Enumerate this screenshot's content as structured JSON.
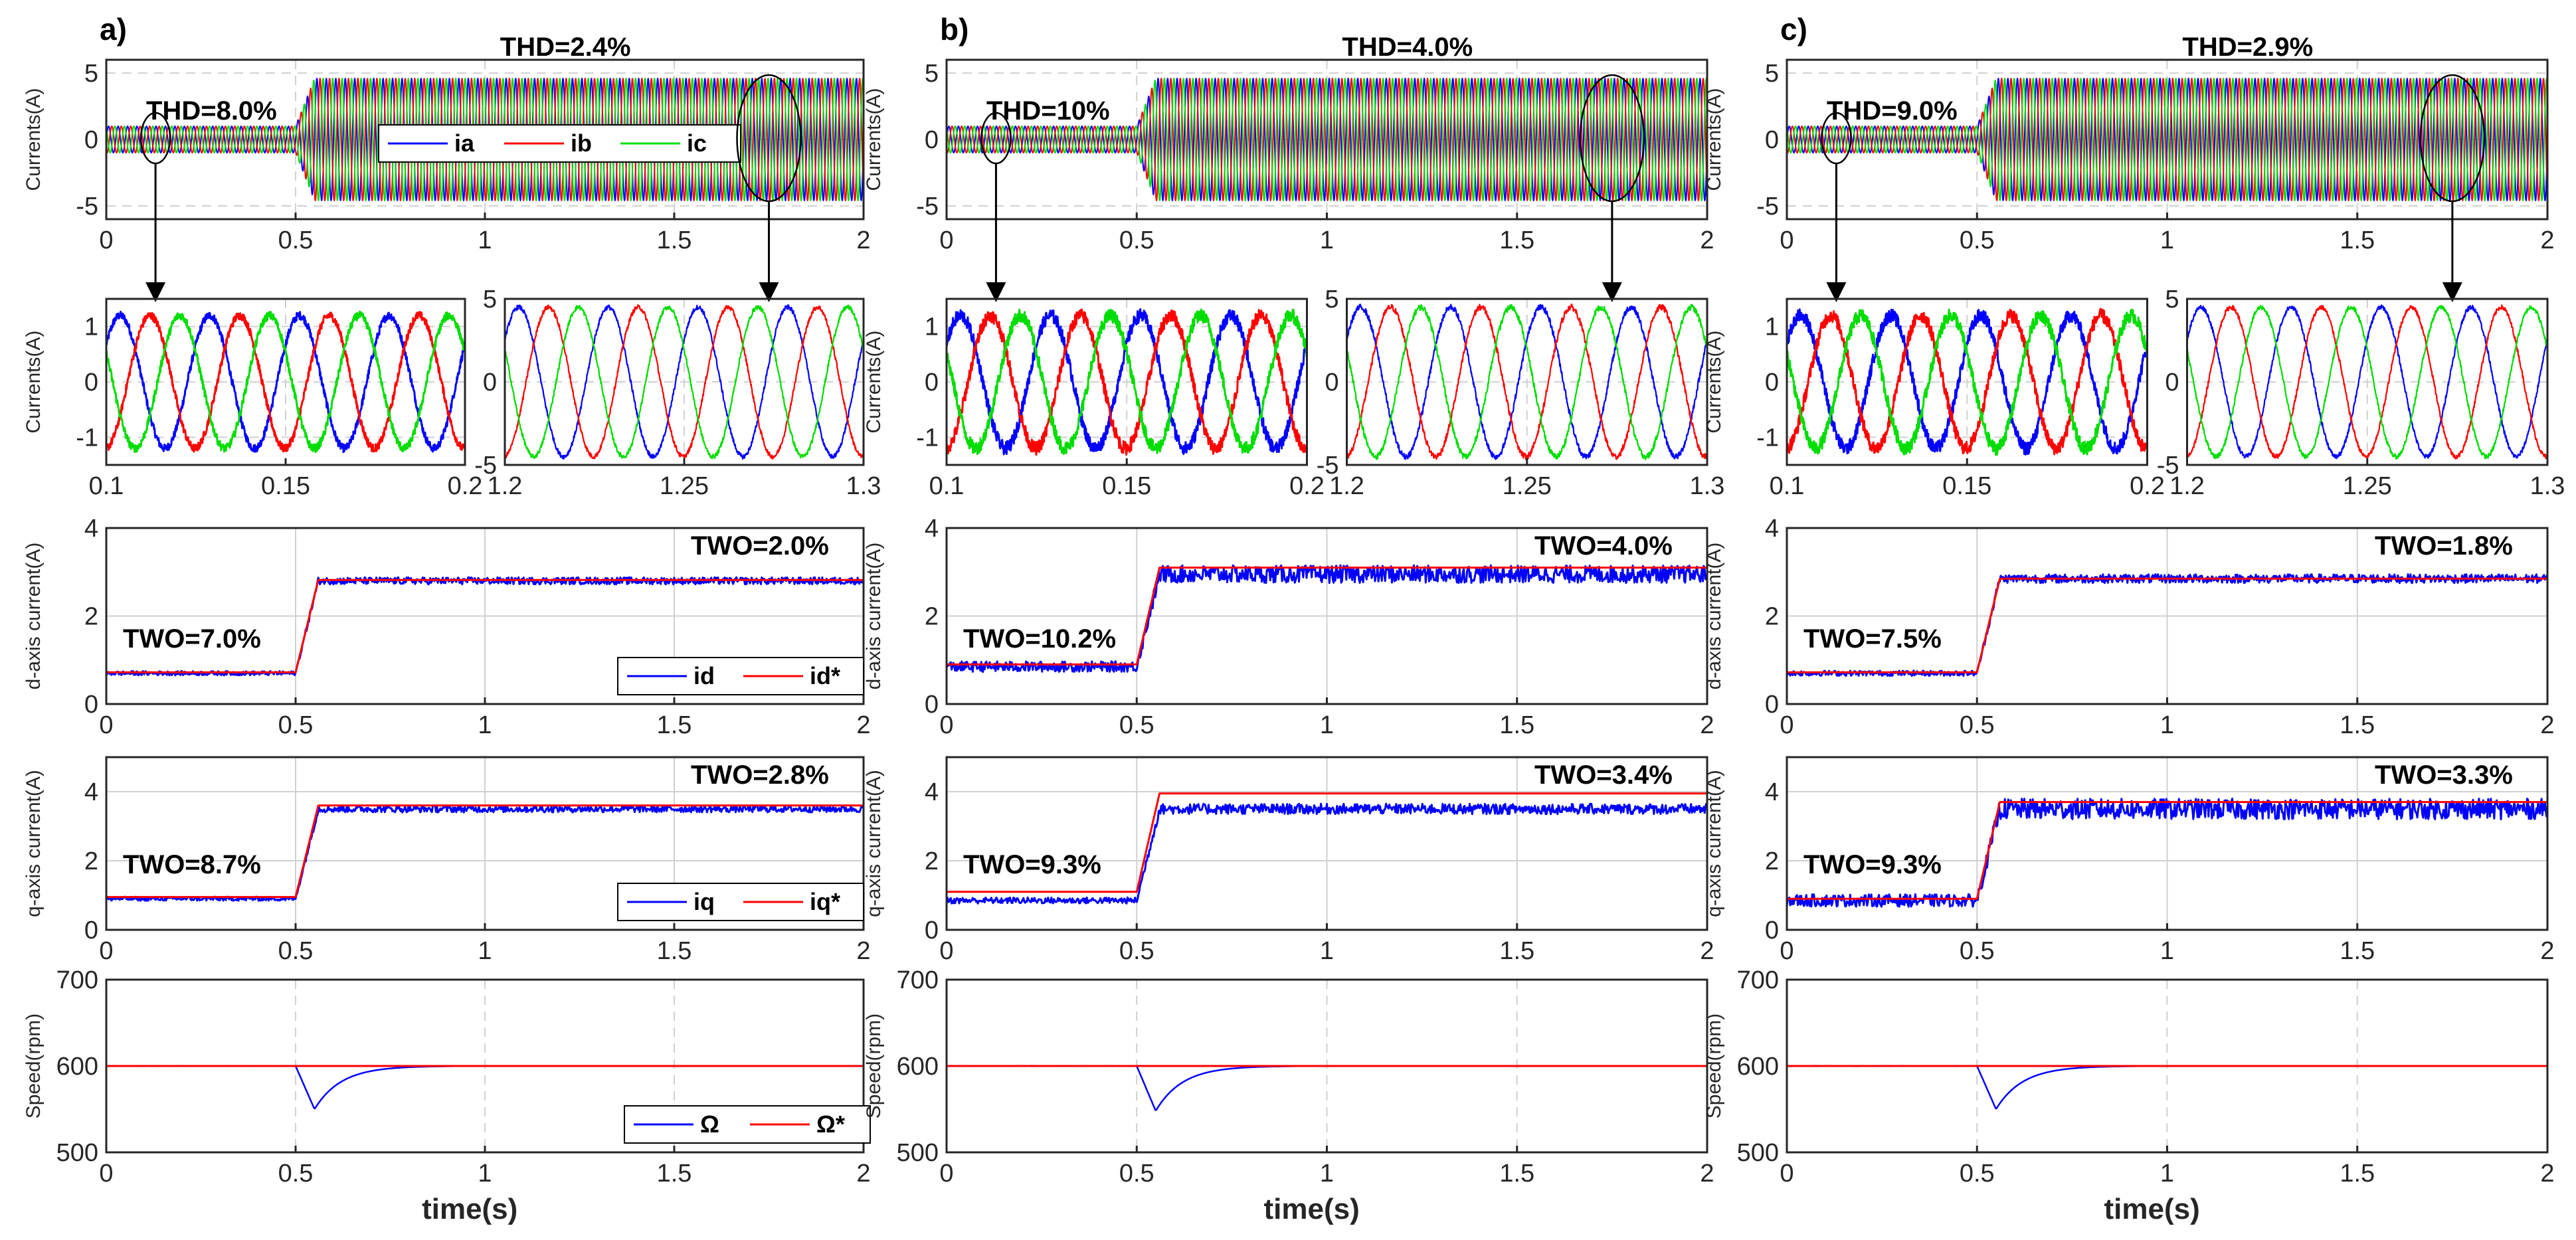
{
  "colors": {
    "a": "#0000ff",
    "b": "#ff0000",
    "c": "#00dd00",
    "grid": "#d0d0d0",
    "axis": "#262626"
  },
  "xlabel": "time(s)",
  "row_ylabels": [
    "Currents(A)",
    "Currents(A)",
    "d-axis current(A)",
    "q-axis current(A)",
    "Speed(rpm)"
  ],
  "legends": {
    "currents": [
      "ia",
      "ib",
      "ic"
    ],
    "d": [
      "id",
      "id*"
    ],
    "q": [
      "iq",
      "iq*"
    ],
    "speed": [
      "Ω",
      "Ω*"
    ]
  },
  "chart_data": [
    {
      "panel": "a)",
      "type": "line",
      "currents": {
        "ylim": [
          -6,
          6
        ],
        "xlim": [
          0,
          2
        ],
        "xticks": [
          "0",
          "0.5",
          "1",
          "1.5",
          "2"
        ],
        "yticks": [
          "5",
          "0",
          "-5"
        ],
        "amp_before": 1.0,
        "amp_after": 4.6,
        "step_time": 0.5,
        "freq_hz": 40,
        "thd_before": "THD=8.0%",
        "thd_after": "THD=2.4%"
      },
      "zoom1": {
        "xlim": [
          0.1,
          0.2
        ],
        "ylim": [
          -1.5,
          1.5
        ],
        "xticks": [
          "0.1",
          "0.15",
          "0.2"
        ],
        "yticks": [
          "1",
          "0",
          "-1"
        ],
        "amplitude": 1.2,
        "noise": 0.06
      },
      "zoom2": {
        "xlim": [
          1.2,
          1.3
        ],
        "ylim": [
          -5,
          5
        ],
        "xticks": [
          "1.2",
          "1.25",
          "1.3"
        ],
        "yticks": [
          "5",
          "0",
          "-5"
        ],
        "amplitude": 4.5,
        "noise": 0.03
      },
      "d": {
        "ylim": [
          0,
          4
        ],
        "xticks": [
          "0",
          "0.5",
          "1",
          "1.5",
          "2"
        ],
        "yticks": [
          "4",
          "2",
          "0"
        ],
        "before": 0.7,
        "after": 2.8,
        "ref_before": 0.72,
        "ref_after": 2.82,
        "ripple": 0.08,
        "two_before": "TWO=7.0%",
        "two_after": "TWO=2.0%"
      },
      "q": {
        "ylim": [
          0,
          5
        ],
        "xticks": [
          "0",
          "0.5",
          "1",
          "1.5",
          "2"
        ],
        "yticks": [
          "4",
          "2",
          "0"
        ],
        "before": 0.9,
        "after": 3.5,
        "ref_before": 0.95,
        "ref_after": 3.6,
        "ripple": 0.1,
        "two_before": "TWO=8.7%",
        "two_after": "TWO=2.8%"
      },
      "speed": {
        "ylim": [
          500,
          700
        ],
        "xticks": [
          "0",
          "0.5",
          "1",
          "1.5",
          "2"
        ],
        "yticks": [
          "700",
          "600",
          "500"
        ],
        "ref": 600,
        "dip_min": 550,
        "dip_time": 0.55
      }
    },
    {
      "panel": "b)",
      "type": "line",
      "currents": {
        "ylim": [
          -6,
          6
        ],
        "xlim": [
          0,
          2
        ],
        "xticks": [
          "0",
          "0.5",
          "1",
          "1.5",
          "2"
        ],
        "yticks": [
          "5",
          "0",
          "-5"
        ],
        "amp_before": 1.0,
        "amp_after": 4.6,
        "step_time": 0.5,
        "freq_hz": 40,
        "thd_before": "THD=10%",
        "thd_after": "THD=4.0%"
      },
      "zoom1": {
        "xlim": [
          0.1,
          0.2
        ],
        "ylim": [
          -1.5,
          1.5
        ],
        "xticks": [
          "0.1",
          "0.15",
          "0.2"
        ],
        "yticks": [
          "1",
          "0",
          "-1"
        ],
        "amplitude": 1.2,
        "noise": 0.1
      },
      "zoom2": {
        "xlim": [
          1.2,
          1.3
        ],
        "ylim": [
          -5,
          5
        ],
        "xticks": [
          "1.2",
          "1.25",
          "1.3"
        ],
        "yticks": [
          "5",
          "0",
          "-5"
        ],
        "amplitude": 4.5,
        "noise": 0.04
      },
      "d": {
        "ylim": [
          0,
          4
        ],
        "xticks": [
          "0",
          "0.5",
          "1",
          "1.5",
          "2"
        ],
        "yticks": [
          "4",
          "2",
          "0"
        ],
        "before": 0.85,
        "after": 2.95,
        "ref_before": 0.9,
        "ref_after": 3.1,
        "ripple": 0.2,
        "two_before": "TWO=10.2%",
        "two_after": "TWO=4.0%"
      },
      "q": {
        "ylim": [
          0,
          5
        ],
        "xticks": [
          "0",
          "0.5",
          "1",
          "1.5",
          "2"
        ],
        "yticks": [
          "4",
          "2",
          "0"
        ],
        "before": 0.85,
        "after": 3.5,
        "ref_before": 1.1,
        "ref_after": 3.95,
        "ripple": 0.15,
        "two_before": "TWO=9.3%",
        "two_after": "TWO=3.4%"
      },
      "speed": {
        "ylim": [
          500,
          700
        ],
        "xticks": [
          "0",
          "0.5",
          "1",
          "1.5",
          "2"
        ],
        "yticks": [
          "700",
          "600",
          "500"
        ],
        "ref": 600,
        "dip_min": 548,
        "dip_time": 0.55
      }
    },
    {
      "panel": "c)",
      "type": "line",
      "currents": {
        "ylim": [
          -6,
          6
        ],
        "xlim": [
          0,
          2
        ],
        "xticks": [
          "0",
          "0.5",
          "1",
          "1.5",
          "2"
        ],
        "yticks": [
          "5",
          "0",
          "-5"
        ],
        "amp_before": 1.0,
        "amp_after": 4.6,
        "step_time": 0.5,
        "freq_hz": 40,
        "thd_before": "THD=9.0%",
        "thd_after": "THD=2.9%"
      },
      "zoom1": {
        "xlim": [
          0.1,
          0.2
        ],
        "ylim": [
          -1.5,
          1.5
        ],
        "xticks": [
          "0.1",
          "0.15",
          "0.2"
        ],
        "yticks": [
          "1",
          "0",
          "-1"
        ],
        "amplitude": 1.2,
        "noise": 0.1
      },
      "zoom2": {
        "xlim": [
          1.2,
          1.3
        ],
        "ylim": [
          -5,
          5
        ],
        "xticks": [
          "1.2",
          "1.25",
          "1.3"
        ],
        "yticks": [
          "5",
          "0",
          "-5"
        ],
        "amplitude": 4.5,
        "noise": 0.03
      },
      "d": {
        "ylim": [
          0,
          4
        ],
        "xticks": [
          "0",
          "0.5",
          "1",
          "1.5",
          "2"
        ],
        "yticks": [
          "4",
          "2",
          "0"
        ],
        "before": 0.7,
        "after": 2.85,
        "ref_before": 0.72,
        "ref_after": 2.85,
        "ripple": 0.1,
        "two_before": "TWO=7.5%",
        "two_after": "TWO=1.8%"
      },
      "q": {
        "ylim": [
          0,
          5
        ],
        "xticks": [
          "0",
          "0.5",
          "1",
          "1.5",
          "2"
        ],
        "yticks": [
          "4",
          "2",
          "0"
        ],
        "before": 0.85,
        "after": 3.5,
        "ref_before": 0.9,
        "ref_after": 3.7,
        "ripple": 0.3,
        "two_before": "TWO=9.3%",
        "two_after": "TWO=3.3%"
      },
      "speed": {
        "ylim": [
          500,
          700
        ],
        "xticks": [
          "0",
          "0.5",
          "1",
          "1.5",
          "2"
        ],
        "yticks": [
          "700",
          "600",
          "500"
        ],
        "ref": 600,
        "dip_min": 550,
        "dip_time": 0.55
      }
    }
  ]
}
